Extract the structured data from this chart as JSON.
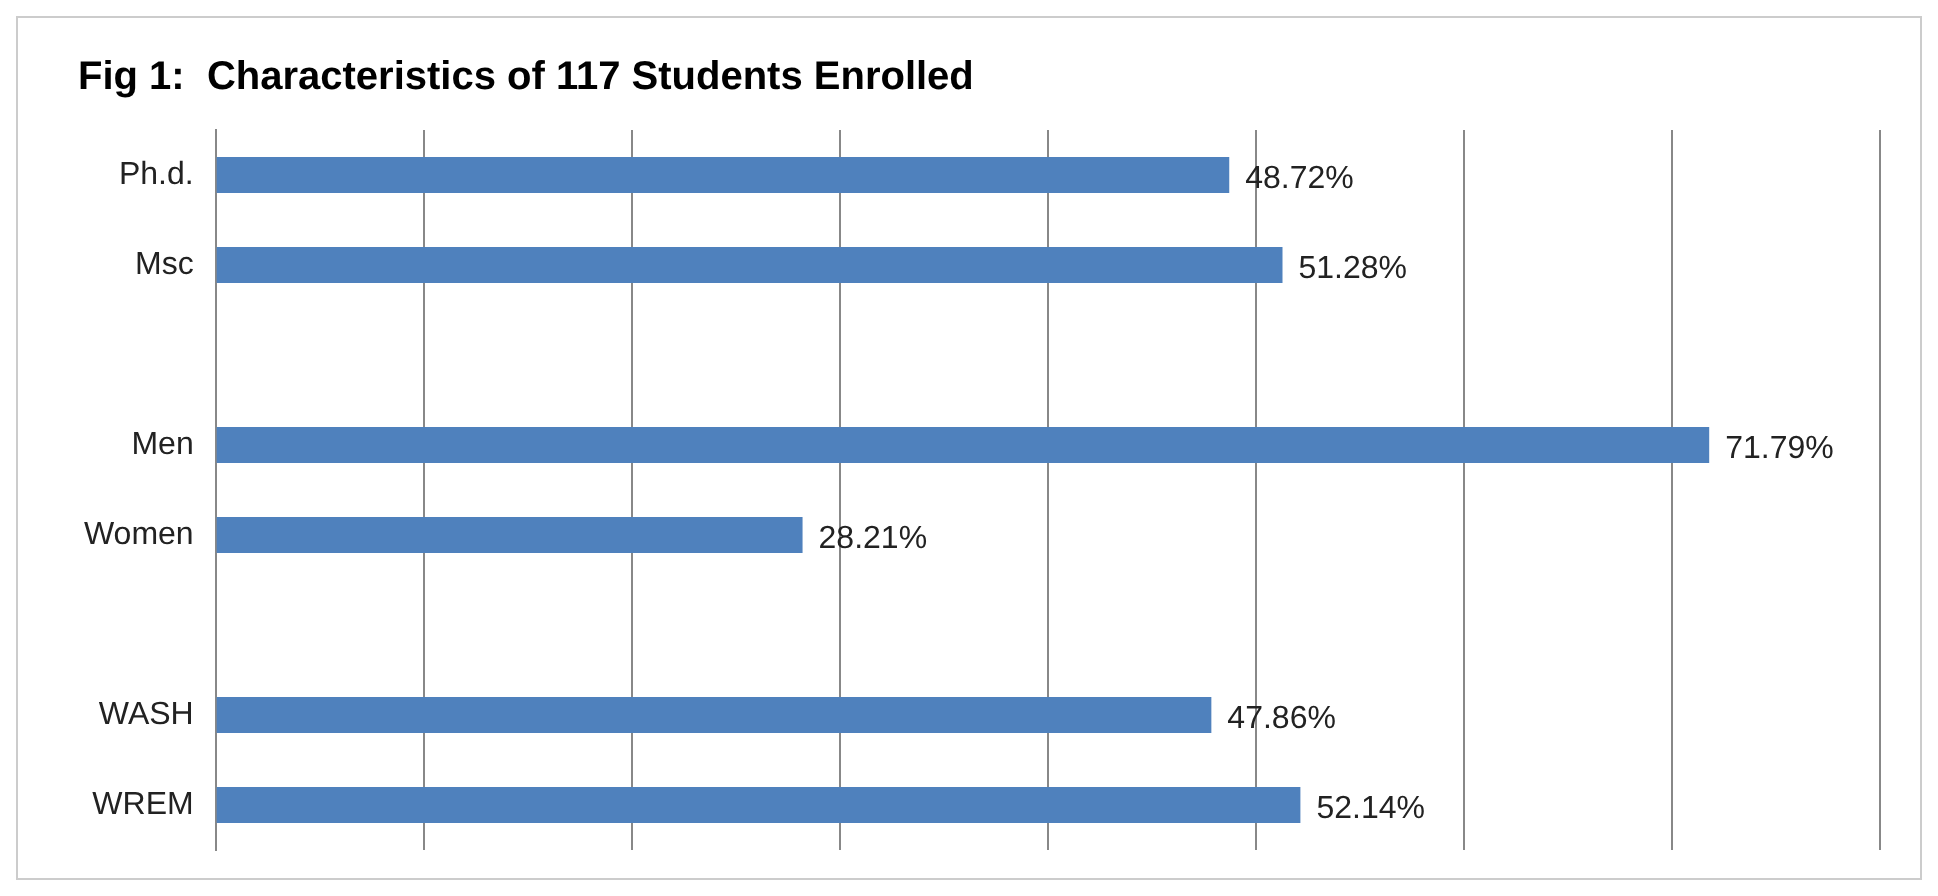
{
  "chart_data": {
    "type": "bar",
    "orientation": "horizontal",
    "title": "Fig 1:  Characteristics of 117 Students Enrolled",
    "categories": [
      "Ph.d.",
      "Msc",
      null,
      "Men",
      "Women",
      null,
      "WASH",
      "WREM"
    ],
    "series": [
      {
        "color": "#4f81bd",
        "values": [
          48.72,
          51.28,
          null,
          71.79,
          28.21,
          null,
          47.86,
          52.14
        ],
        "value_labels": [
          "48.72%",
          "51.28%",
          null,
          "71.79%",
          "28.21%",
          null,
          "47.86%",
          "52.14%"
        ]
      }
    ],
    "xlim": [
      0,
      80
    ],
    "xticks": [
      {
        "value": 0,
        "label": null
      },
      {
        "value": 10,
        "label": null
      },
      {
        "value": 20,
        "label": null
      },
      {
        "value": 30,
        "label": null
      },
      {
        "value": 40,
        "label": null
      },
      {
        "value": 50,
        "label": null
      },
      {
        "value": 60,
        "label": null
      },
      {
        "value": 70,
        "label": null
      },
      {
        "value": 80,
        "label": null
      }
    ],
    "tick_labels": "y",
    "grid": "x",
    "legend": false
  }
}
